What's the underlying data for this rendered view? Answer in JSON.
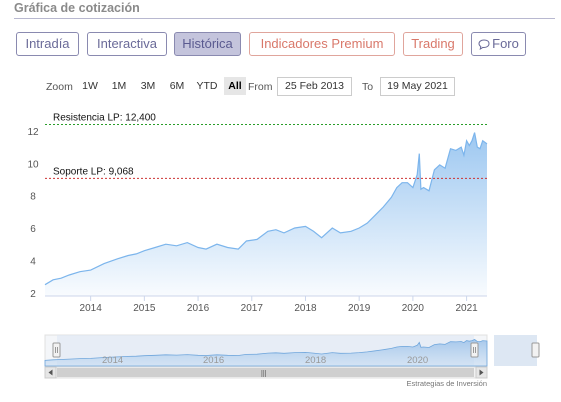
{
  "title": "Gráfica de cotización",
  "tabs": [
    {
      "label": "Intradía",
      "active": false,
      "accent": "default"
    },
    {
      "label": "Interactiva",
      "active": false,
      "accent": "default"
    },
    {
      "label": "Histórica",
      "active": true,
      "accent": "default"
    },
    {
      "label": "Indicadores Premium",
      "active": false,
      "accent": "red"
    },
    {
      "label": "Trading",
      "active": false,
      "accent": "red"
    },
    {
      "label": "Foro",
      "active": false,
      "accent": "default",
      "icon": "chat-bubble-icon"
    }
  ],
  "range_selector": {
    "zoom_label": "Zoom",
    "buttons": [
      "1W",
      "1M",
      "3M",
      "6M",
      "YTD",
      "All"
    ],
    "selected": "All",
    "from_label": "From",
    "from_value": "25 Feb 2013",
    "to_label": "To",
    "to_value": "19 May 2021"
  },
  "navigator": {
    "labels": [
      "2014",
      "2016",
      "2018",
      "2020"
    ],
    "scrollbar_grip": "|||"
  },
  "credit": "Estrategias de Inversión",
  "colors": {
    "series": "#7cb5ec",
    "resistance": "#2a9d2a",
    "support": "#cc3333",
    "tab_border": "#8a8ab0",
    "tab_active_bg": "#c4c4dc",
    "tab_red": "#d9786a"
  },
  "chart_data": {
    "type": "area",
    "y_ticks": [
      2,
      4,
      6,
      8,
      10,
      12
    ],
    "x_ticks": [
      "2014",
      "2015",
      "2016",
      "2017",
      "2018",
      "2019",
      "2020",
      "2021"
    ],
    "ylim": [
      1.8,
      12.8
    ],
    "xlim": [
      2013.15,
      2021.38
    ],
    "grid": false,
    "annotations": [
      {
        "label": "Resistencia LP: 12,400",
        "value": 12.4,
        "style": "dotted",
        "color": "#2a9d2a"
      },
      {
        "label": "Soporte LP: 9,068",
        "value": 9.068,
        "style": "dotted",
        "color": "#cc3333"
      }
    ],
    "series": [
      {
        "x": [
          2013.15,
          2013.3,
          2013.45,
          2013.6,
          2013.8,
          2014.0,
          2014.25,
          2014.5,
          2014.7,
          2014.85,
          2015.0,
          2015.2,
          2015.4,
          2015.6,
          2015.8,
          2016.0,
          2016.15,
          2016.35,
          2016.55,
          2016.75,
          2016.9,
          2017.1,
          2017.3,
          2017.45,
          2017.6,
          2017.8,
          2018.0,
          2018.15,
          2018.3,
          2018.5,
          2018.65,
          2018.85,
          2019.0,
          2019.15,
          2019.3,
          2019.45,
          2019.6,
          2019.7,
          2019.8,
          2019.9,
          2020.0,
          2020.08,
          2020.12,
          2020.15,
          2020.2,
          2020.3,
          2020.4,
          2020.5,
          2020.6,
          2020.7,
          2020.8,
          2020.9,
          2020.95,
          2021.0,
          2021.05,
          2021.1,
          2021.15,
          2021.2,
          2021.25,
          2021.3,
          2021.38
        ],
        "values": [
          2.5,
          2.8,
          2.9,
          3.1,
          3.3,
          3.4,
          3.8,
          4.1,
          4.3,
          4.4,
          4.6,
          4.8,
          5.0,
          4.9,
          5.1,
          4.8,
          4.7,
          5.0,
          4.8,
          4.7,
          5.2,
          5.3,
          5.8,
          5.9,
          5.7,
          6.0,
          6.1,
          5.8,
          5.4,
          6.0,
          5.7,
          5.8,
          6.0,
          6.3,
          6.8,
          7.3,
          7.9,
          8.5,
          8.8,
          8.8,
          8.5,
          9.3,
          10.6,
          8.4,
          8.5,
          8.3,
          9.6,
          9.9,
          9.7,
          10.9,
          10.8,
          11.0,
          10.5,
          11.4,
          11.1,
          11.4,
          11.9,
          11.0,
          10.9,
          11.4,
          11.2
        ]
      }
    ]
  }
}
